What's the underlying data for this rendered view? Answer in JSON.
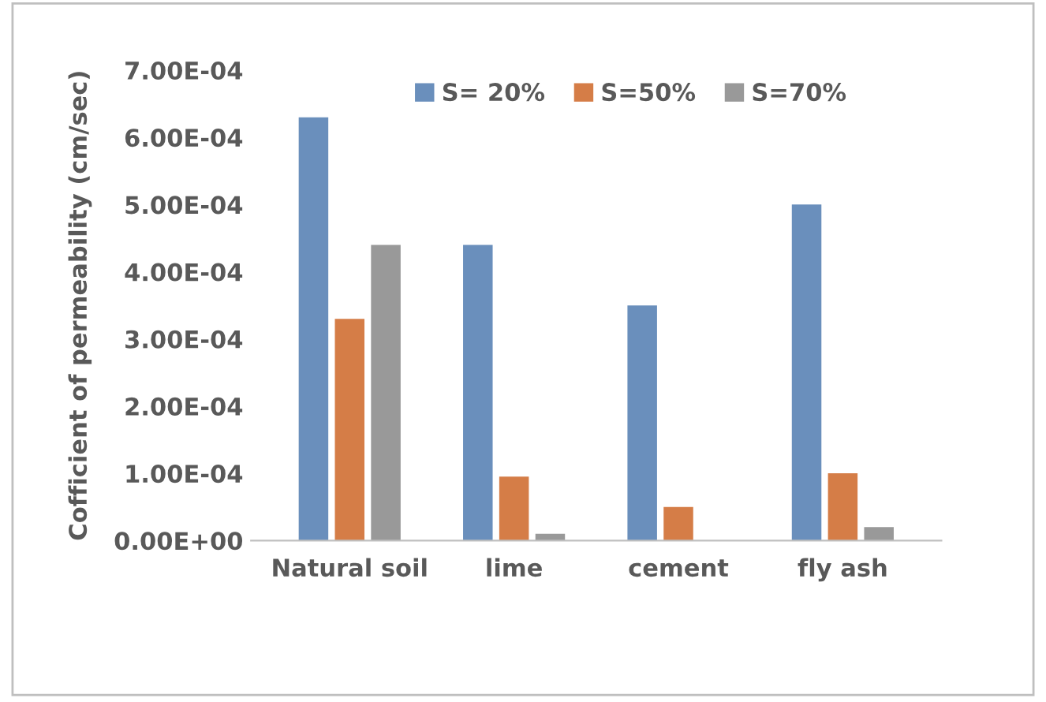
{
  "chart_data": {
    "type": "bar",
    "ylabel": "Cofficient of permeability (cm/sec)",
    "categories": [
      "Natural soil",
      "lime",
      "cement",
      "fly ash"
    ],
    "series": [
      {
        "name": "S= 20%",
        "color": "#6a8fbc",
        "values": [
          0.00063,
          0.00044,
          0.00035,
          0.0005
        ]
      },
      {
        "name": "S=50%",
        "color": "#d57d47",
        "values": [
          0.00033,
          9.5e-05,
          5e-05,
          0.0001
        ]
      },
      {
        "name": "S=70%",
        "color": "#999999",
        "values": [
          0.00044,
          1e-05,
          0,
          2e-05
        ]
      }
    ],
    "ylim": [
      0,
      0.0007
    ],
    "yticks": [
      {
        "value": 0,
        "label": "0.00E+00"
      },
      {
        "value": 0.0001,
        "label": "1.00E-04"
      },
      {
        "value": 0.0002,
        "label": "2.00E-04"
      },
      {
        "value": 0.0003,
        "label": "3.00E-04"
      },
      {
        "value": 0.0004,
        "label": "4.00E-04"
      },
      {
        "value": 0.0005,
        "label": "5.00E-04"
      },
      {
        "value": 0.0006,
        "label": "6.00E-04"
      },
      {
        "value": 0.0007,
        "label": "7.00E-04"
      }
    ],
    "grid": false,
    "legend": "top"
  }
}
